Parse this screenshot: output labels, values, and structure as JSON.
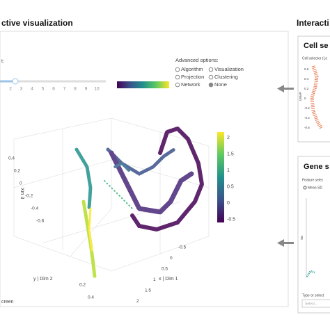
{
  "left_panel": {
    "title": "ctive visualization",
    "slider": {
      "label": "t:",
      "ticks": [
        "2",
        "3",
        "4",
        "5",
        "6",
        "7",
        "8",
        "9",
        "10"
      ]
    },
    "advanced_options": {
      "title": "Advanced options:",
      "options": [
        "Algorithm",
        "Visualization",
        "Projection",
        "Clustering",
        "Network",
        "None"
      ]
    },
    "colorbar_ticks": [
      "2",
      "1.5",
      "1",
      "0.5",
      "0",
      "-0.5"
    ],
    "axis_labels": {
      "z": "Xm 3",
      "y": "y | Dim 2",
      "x": "x | Dim 1"
    },
    "z_ticks": [
      "0.4",
      "0.2",
      "0",
      "-0.2",
      "-0.4",
      "-0.6"
    ],
    "y_ticks": [
      "0.2",
      "0.4"
    ],
    "x_ticks": [
      "-0.5",
      "0",
      "0.5",
      "1",
      "1.5",
      "2"
    ],
    "footer": "creen"
  },
  "right_panel": {
    "title": "Interacti",
    "cell_card": {
      "title": "Cell se",
      "subtitle": "Cell selector (Le",
      "y_label": "UMAP",
      "ticks": [
        "0.6",
        "0.4",
        "0.2",
        "0",
        "-0.2",
        "-0.4",
        "-0.6"
      ]
    },
    "gene_card": {
      "title": "Gene s",
      "subtitle": "Feature selec",
      "option": "Mean-SD",
      "y_label": "SD",
      "input_label": "Type or select",
      "placeholder": "Select..."
    }
  }
}
